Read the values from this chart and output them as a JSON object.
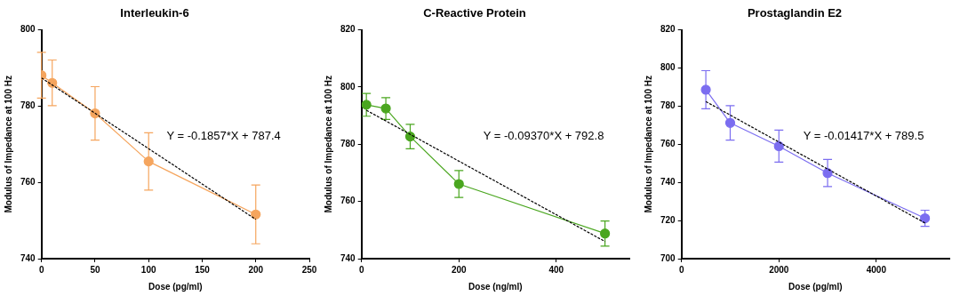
{
  "chart_data": [
    {
      "type": "line",
      "title": "Interleukin-6",
      "xlabel": "Dose (pg/ml)",
      "ylabel": "Modulus of Impedance at 100 Hz",
      "xlim": [
        0,
        250
      ],
      "xticks": [
        0,
        50,
        100,
        150,
        200,
        250
      ],
      "ylim": [
        740,
        800
      ],
      "yticks": [
        740,
        760,
        780,
        800
      ],
      "grid": false,
      "legend": false,
      "marker": "circle",
      "line_style": "solid",
      "annotations": [
        "Y = -0.1857*X + 787.4"
      ],
      "series": [
        {
          "color": "#f5a55e",
          "x": [
            0,
            10,
            50,
            100,
            200
          ],
          "values": [
            788.1,
            786.1,
            778.1,
            765.5,
            751.6
          ],
          "errors": [
            6,
            6,
            7,
            7.5,
            7.7
          ]
        },
        {
          "type": "line",
          "color": "#000000",
          "marker": "none",
          "line_style": "dashed",
          "x": [
            0,
            200
          ],
          "values": [
            787.4,
            750.3
          ]
        }
      ]
    },
    {
      "type": "line",
      "title": "C-Reactive Protein",
      "xlabel": "Dose (ng/ml)",
      "ylabel": "Modulus of Impedance at 100 Hz",
      "xlim": [
        0,
        550
      ],
      "xticks": [
        0,
        200,
        400
      ],
      "ylim": [
        740,
        820
      ],
      "yticks": [
        740,
        760,
        780,
        800,
        820
      ],
      "grid": false,
      "legend": false,
      "marker": "circle",
      "line_style": "solid",
      "annotations": [
        "Y = -0.09370*X + 792.8"
      ],
      "series": [
        {
          "color": "#4aa61f",
          "x": [
            10,
            50,
            100,
            200,
            500
          ],
          "values": [
            793.8,
            792.5,
            782.7,
            766.1,
            748.8
          ],
          "errors": [
            4,
            3.8,
            4.3,
            4.7,
            4.4
          ]
        },
        {
          "type": "line",
          "color": "#000000",
          "marker": "none",
          "line_style": "dashed",
          "x": [
            10,
            500
          ],
          "values": [
            791.9,
            746.0
          ]
        }
      ]
    },
    {
      "type": "line",
      "title": "Prostaglandin E2",
      "xlabel": "Dose (pg/ml)",
      "ylabel": "Modulus of Impedance at 100 Hz",
      "xlim": [
        0,
        5500
      ],
      "xticks": [
        0,
        2000,
        4000
      ],
      "ylim": [
        700,
        820
      ],
      "yticks": [
        700,
        720,
        740,
        760,
        780,
        800,
        820
      ],
      "grid": false,
      "legend": false,
      "marker": "circle",
      "line_style": "solid",
      "annotations": [
        "Y = -0.01417*X + 789.5"
      ],
      "series": [
        {
          "color": "#7b6df0",
          "x": [
            500,
            1000,
            2000,
            3000,
            5000
          ],
          "values": [
            788.6,
            771.2,
            759.0,
            744.9,
            721.2
          ],
          "errors": [
            10,
            9,
            8.4,
            7.1,
            4.2
          ]
        },
        {
          "type": "line",
          "color": "#000000",
          "marker": "none",
          "line_style": "dashed",
          "x": [
            500,
            5000
          ],
          "values": [
            782.4,
            718.7
          ]
        }
      ]
    }
  ]
}
